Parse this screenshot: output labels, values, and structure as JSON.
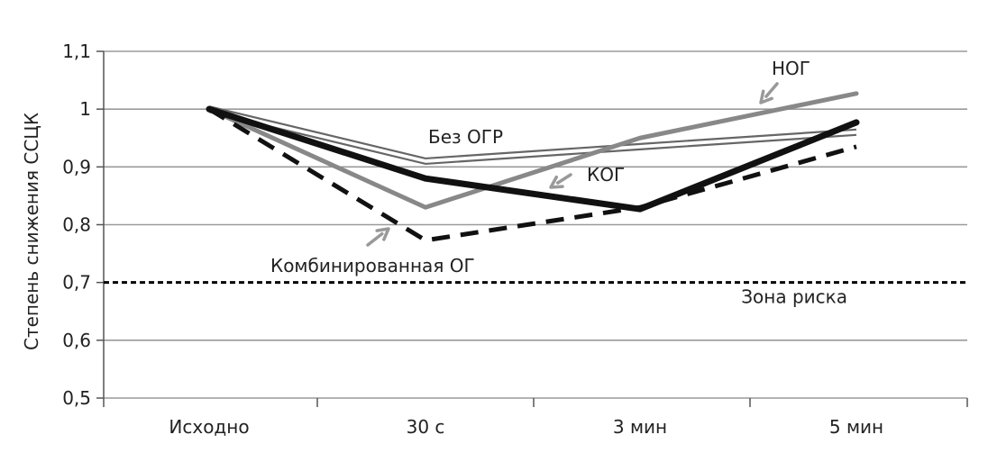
{
  "chart_data": {
    "type": "line",
    "title": "",
    "xlabel": "",
    "ylabel": "Степень снижения ССЦК",
    "categories": [
      "Исходно",
      "30 с",
      "3 мин",
      "5 мин"
    ],
    "ylim": [
      0.5,
      1.1
    ],
    "yticks": [
      0.5,
      0.6,
      0.7,
      0.8,
      0.9,
      1.0,
      1.1
    ],
    "ytick_labels": [
      "0,5",
      "0,6",
      "0,7",
      "0,8",
      "0,9",
      "1",
      "1,1"
    ],
    "grid": true,
    "series": [
      {
        "name": "Без ОГР",
        "points": [
          {
            "x": 0,
            "y": 1.0
          },
          {
            "x": 1,
            "y": 0.91
          },
          {
            "x": 2,
            "y": 0.935
          },
          {
            "x": 3,
            "y": 0.96
          }
        ],
        "color": "#666666",
        "style": "double-thin"
      },
      {
        "name": "НОГ",
        "points": [
          {
            "x": 0,
            "y": 1.0
          },
          {
            "x": 1,
            "y": 0.83
          },
          {
            "x": 2,
            "y": 0.95
          },
          {
            "x": 3,
            "y": 1.027
          }
        ],
        "color": "#888888",
        "style": "thick-gray"
      },
      {
        "name": "КОГ",
        "points": [
          {
            "x": 0,
            "y": 1.0
          },
          {
            "x": 1,
            "y": 0.88
          },
          {
            "x": 2,
            "y": 0.827
          },
          {
            "x": 3,
            "y": 0.977
          }
        ],
        "color": "#111111",
        "style": "thick-black"
      },
      {
        "name": "Комбинированная ОГ",
        "points": [
          {
            "x": 0,
            "y": 1.0
          },
          {
            "x": 1,
            "y": 0.773
          },
          {
            "x": 2,
            "y": 0.83
          },
          {
            "x": 3,
            "y": 0.935
          }
        ],
        "color": "#111111",
        "style": "dashed-black"
      }
    ],
    "threshold": {
      "y": 0.7,
      "label": "Зона риска",
      "color": "#000000"
    },
    "annotations": [
      {
        "text": "Без ОГР"
      },
      {
        "text": "НОГ"
      },
      {
        "text": "КОГ"
      },
      {
        "text": "Комбинированная ОГ"
      }
    ],
    "arrow_color": "#999999"
  }
}
